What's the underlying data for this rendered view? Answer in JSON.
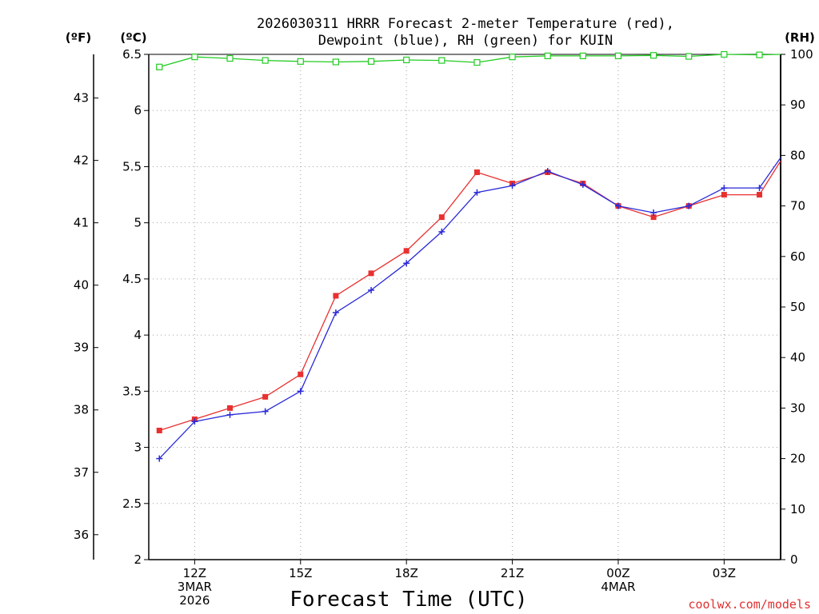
{
  "chart_data": {
    "type": "line",
    "title_lines": [
      "2026030311 HRRR Forecast 2-meter Temperature (red),",
      "Dewpoint (blue), RH (green) for KUIN"
    ],
    "xlabel": "Forecast Time (UTC)",
    "credit": "coolwx.com/models",
    "left_outer_axis": {
      "unit": "(ºF)",
      "ticks": [
        "36",
        "37",
        "38",
        "39",
        "40",
        "41",
        "42",
        "43"
      ],
      "range": [
        35.6,
        43.7
      ]
    },
    "left_axis": {
      "unit": "(ºC)",
      "ticks": [
        "2",
        "2.5",
        "3",
        "3.5",
        "4",
        "4.5",
        "5",
        "5.5",
        "6",
        "6.5"
      ],
      "range": [
        2,
        6.5
      ]
    },
    "right_axis": {
      "unit": "(RH)",
      "ticks": [
        "0",
        "10",
        "20",
        "30",
        "40",
        "50",
        "60",
        "70",
        "80",
        "90",
        "100"
      ],
      "range": [
        0,
        100
      ]
    },
    "x_range": [
      10.7,
      28.6
    ],
    "x_ticks": [
      {
        "x": 12,
        "lines": [
          "12Z",
          "3MAR",
          "2026"
        ]
      },
      {
        "x": 15,
        "lines": [
          "15Z"
        ]
      },
      {
        "x": 18,
        "lines": [
          "18Z"
        ]
      },
      {
        "x": 21,
        "lines": [
          "21Z"
        ]
      },
      {
        "x": 24,
        "lines": [
          "00Z",
          "4MAR"
        ]
      },
      {
        "x": 27,
        "lines": [
          "03Z"
        ]
      }
    ],
    "hours": [
      11,
      12,
      13,
      14,
      15,
      16,
      17,
      18,
      19,
      20,
      21,
      22,
      23,
      24,
      25,
      26,
      27,
      28,
      28.6
    ],
    "series": [
      {
        "name": "Temperature",
        "axis": "C",
        "color": "#e83030",
        "marker": "square-filled",
        "values": [
          3.15,
          3.25,
          3.35,
          3.45,
          3.65,
          4.35,
          4.55,
          4.75,
          5.05,
          5.45,
          5.35,
          5.45,
          5.35,
          5.15,
          5.05,
          5.15,
          5.25,
          5.25,
          5.55
        ]
      },
      {
        "name": "Dewpoint",
        "axis": "C",
        "color": "#2a2ad8",
        "marker": "plus",
        "values": [
          2.9,
          3.23,
          3.29,
          3.32,
          3.5,
          4.2,
          4.4,
          4.64,
          4.92,
          5.27,
          5.33,
          5.46,
          5.34,
          5.15,
          5.09,
          5.15,
          5.31,
          5.31,
          5.58
        ]
      },
      {
        "name": "RH",
        "axis": "RH",
        "color": "#22cc22",
        "marker": "square-open",
        "values": [
          97.5,
          99.5,
          99.2,
          98.8,
          98.6,
          98.5,
          98.6,
          98.9,
          98.8,
          98.4,
          99.5,
          99.7,
          99.7,
          99.7,
          99.8,
          99.6,
          100,
          99.9,
          100
        ]
      }
    ]
  }
}
